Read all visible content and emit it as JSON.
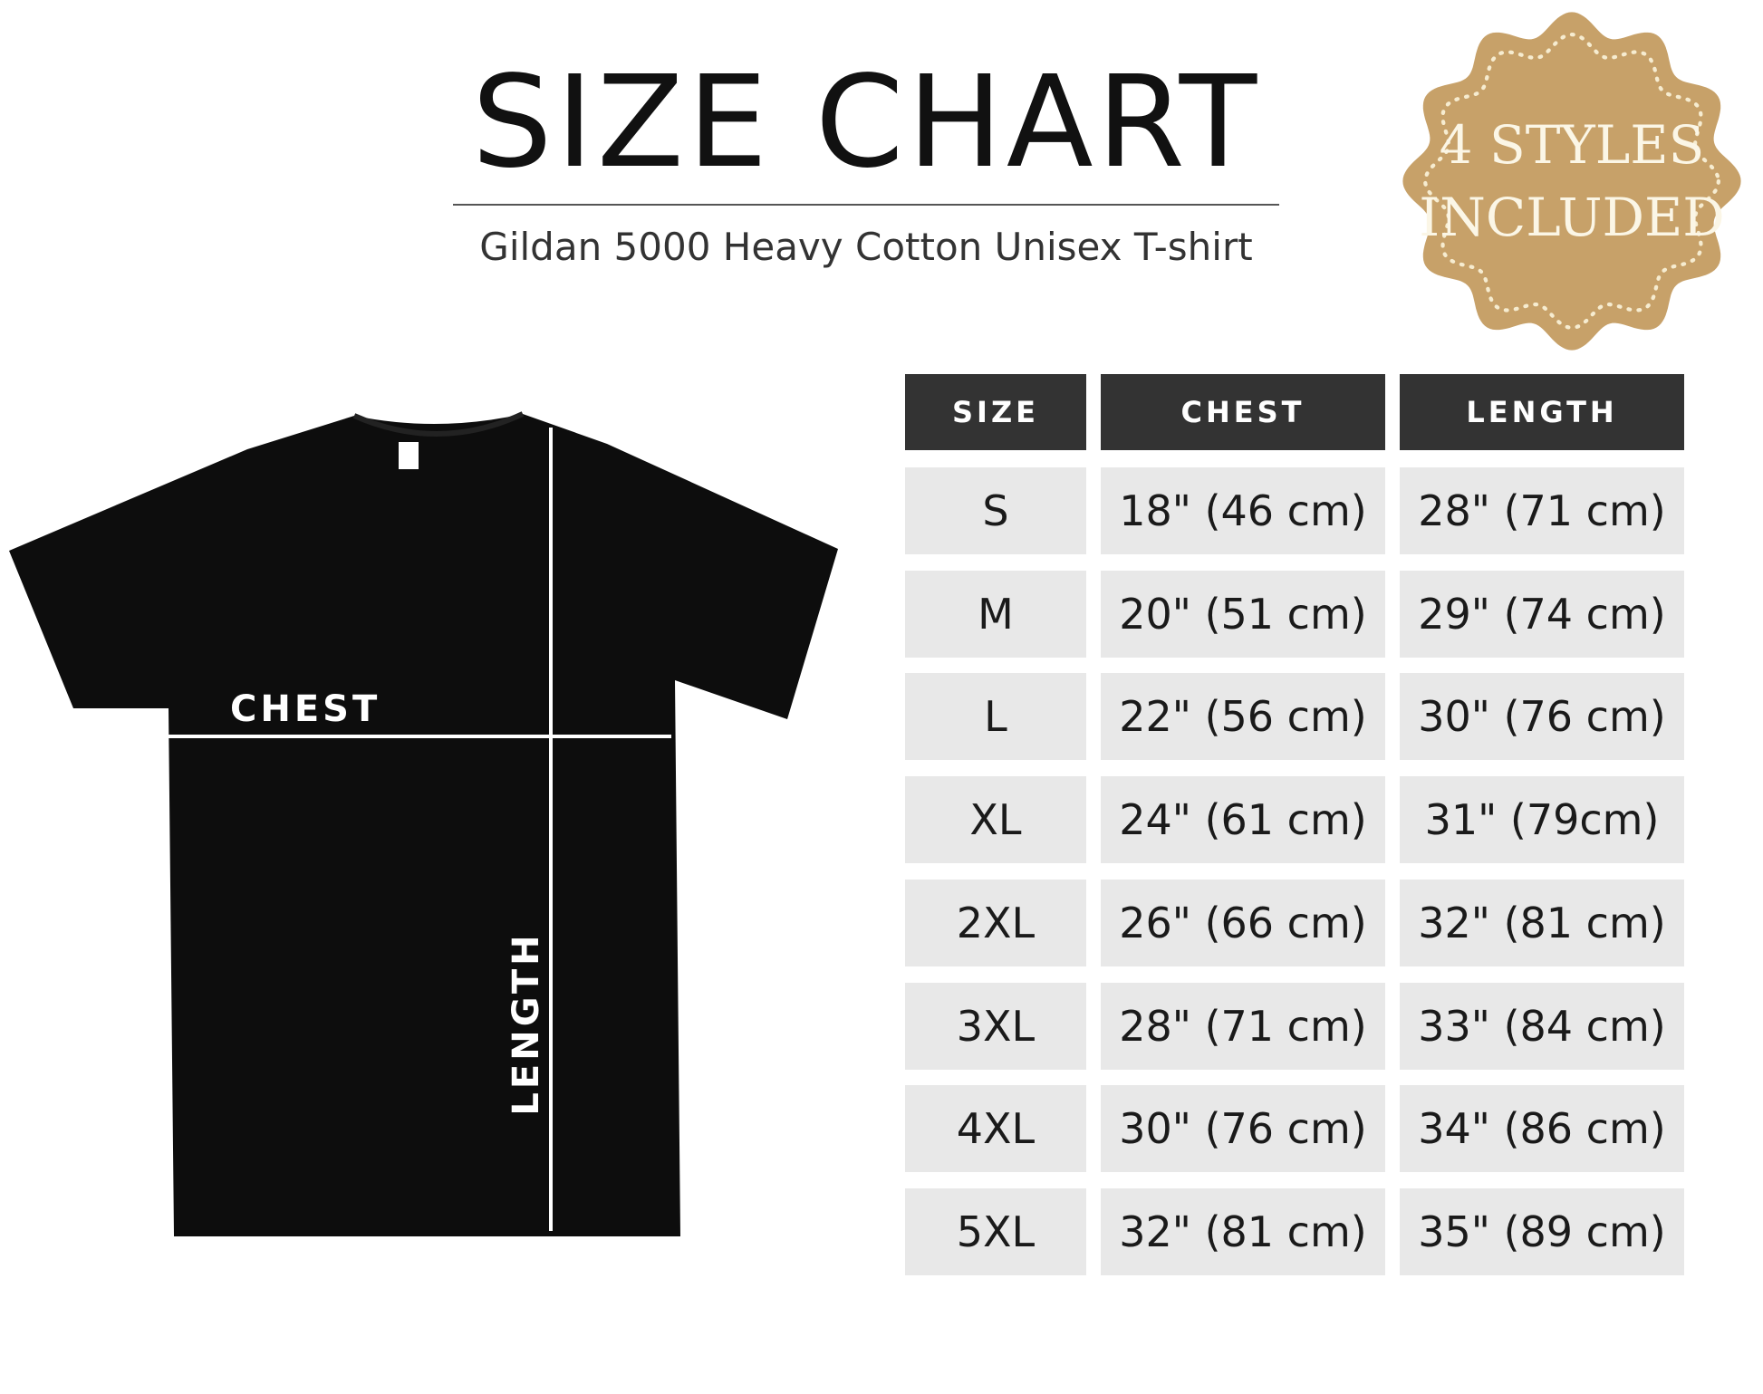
{
  "header": {
    "title": "SIZE CHART",
    "subtitle": "Gildan 5000 Heavy Cotton Unisex T-shirt"
  },
  "badge": {
    "line1": "4 STYLES",
    "line2": "INCLUDED",
    "color": "#c39a5e"
  },
  "diagram": {
    "chest_label": "CHEST",
    "length_label": "LENGTH",
    "shirt_color": "#0d0d0d"
  },
  "table": {
    "headers": [
      "SIZE",
      "CHEST",
      "LENGTH"
    ],
    "rows": [
      [
        "S",
        "18\" (46 cm)",
        "28\" (71 cm)"
      ],
      [
        "M",
        "20\" (51 cm)",
        "29\" (74 cm)"
      ],
      [
        "L",
        "22\" (56 cm)",
        "30\" (76 cm)"
      ],
      [
        "XL",
        "24\" (61 cm)",
        "31\" (79cm)"
      ],
      [
        "2XL",
        "26\" (66 cm)",
        "32\" (81 cm)"
      ],
      [
        "3XL",
        "28\" (71 cm)",
        "33\" (84 cm)"
      ],
      [
        "4XL",
        "30\" (76 cm)",
        "34\" (86 cm)"
      ],
      [
        "5XL",
        "32\" (81 cm)",
        "35\" (89 cm)"
      ]
    ]
  }
}
